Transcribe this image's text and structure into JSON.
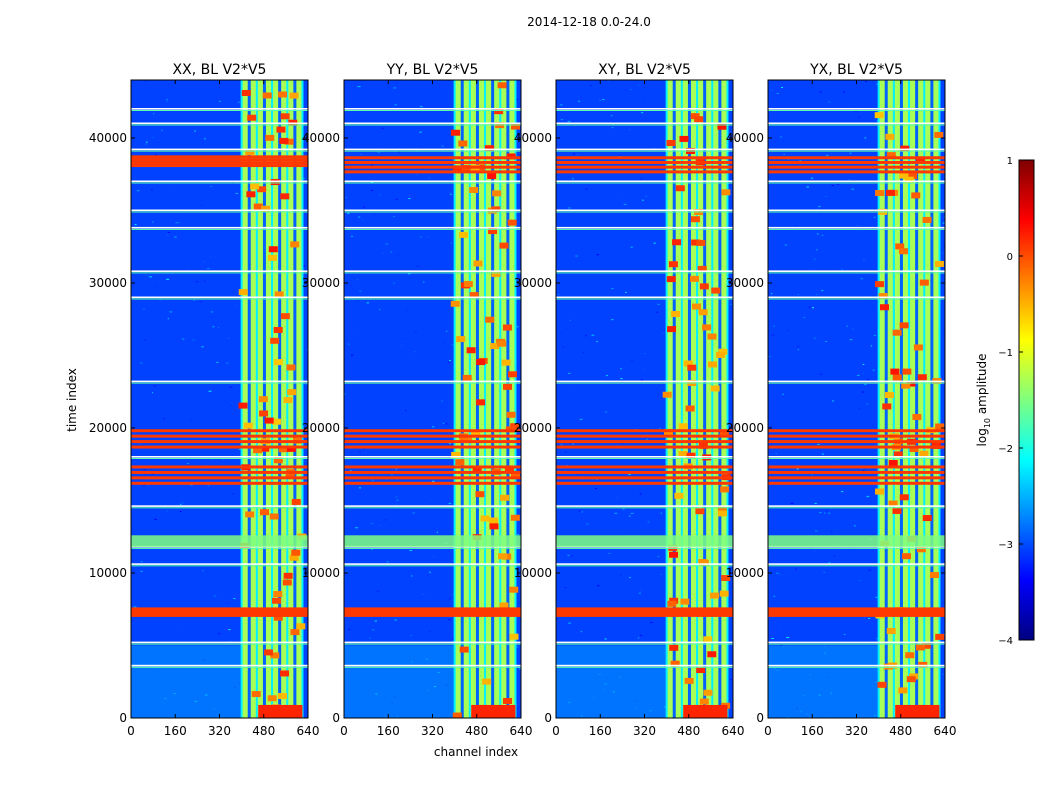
{
  "figure": {
    "suptitle": "2014-12-18 0.0-24.0",
    "ylabel": "time index",
    "xlabel": "channel index"
  },
  "colorbar": {
    "label": "log$_{10}$ amplitude",
    "label_parts": [
      "log",
      "10",
      " amplitude"
    ],
    "ticks": [
      1,
      0,
      -1,
      -2,
      -3,
      -4
    ],
    "tick_labels": [
      "1",
      "0",
      "−1",
      "−2",
      "−3",
      "−4"
    ],
    "range": [
      -4,
      1
    ],
    "colormap": "jet",
    "colormap_stops": [
      "#00007f",
      "#0000ff",
      "#007fff",
      "#00ffff",
      "#7fff7f",
      "#ffff00",
      "#ff7f00",
      "#ff0000",
      "#7f0000"
    ]
  },
  "chart_data": [
    {
      "type": "heatmap",
      "title": "XX, BL V2*V5",
      "xlabel": "channel index",
      "ylabel": "time index",
      "xlim": [
        0,
        640
      ],
      "ylim": [
        0,
        44000
      ],
      "xticks": [
        0,
        160,
        320,
        480,
        640
      ],
      "yticks": [
        0,
        10000,
        20000,
        30000,
        40000
      ],
      "ytick_labels": [
        "0",
        "10000",
        "20000",
        "30000",
        "40000"
      ],
      "band_channels": [
        [
          400,
          620
        ]
      ],
      "strong_time_bands": [
        [
          7000,
          7600
        ],
        [
          16000,
          17500
        ],
        [
          18500,
          20000
        ],
        [
          38000,
          38800
        ]
      ],
      "gap_rows": [
        3600,
        5200,
        10600,
        11800,
        14600,
        18000,
        23200,
        29000,
        30800,
        33800,
        35000,
        37000,
        39200,
        41000,
        42000
      ]
    },
    {
      "type": "heatmap",
      "title": "YY, BL V2*V5",
      "xlabel": "channel index",
      "ylabel": "time index",
      "xlim": [
        0,
        640
      ],
      "ylim": [
        0,
        44000
      ],
      "xticks": [
        0,
        160,
        320,
        480,
        640
      ],
      "yticks": [
        0,
        10000,
        20000,
        30000,
        40000
      ],
      "ytick_labels": [
        "0",
        "10000",
        "20000",
        "30000",
        "40000"
      ],
      "band_channels": [
        [
          400,
          620
        ]
      ],
      "strong_time_bands": [
        [
          7000,
          7600
        ],
        [
          16000,
          17500
        ],
        [
          18500,
          20000
        ],
        [
          37500,
          38800
        ]
      ],
      "gap_rows": [
        3600,
        5200,
        10600,
        11800,
        14600,
        18000,
        23200,
        29000,
        30800,
        33800,
        35000,
        37000,
        39200,
        41000,
        42000
      ]
    },
    {
      "type": "heatmap",
      "title": "XY, BL V2*V5",
      "xlabel": "channel index",
      "ylabel": "time index",
      "xlim": [
        0,
        640
      ],
      "ylim": [
        0,
        44000
      ],
      "xticks": [
        0,
        160,
        320,
        480,
        640
      ],
      "yticks": [
        0,
        10000,
        20000,
        30000,
        40000
      ],
      "ytick_labels": [
        "0",
        "10000",
        "20000",
        "30000",
        "40000"
      ],
      "band_channels": [
        [
          400,
          620
        ]
      ],
      "strong_time_bands": [
        [
          7000,
          7600
        ],
        [
          16000,
          17500
        ],
        [
          18500,
          20000
        ],
        [
          37500,
          38800
        ]
      ],
      "gap_rows": [
        3600,
        5200,
        10600,
        11800,
        14600,
        18000,
        23200,
        29000,
        30800,
        33800,
        35000,
        37000,
        39200,
        41000,
        42000
      ]
    },
    {
      "type": "heatmap",
      "title": "YX, BL V2*V5",
      "xlabel": "channel index",
      "ylabel": "time index",
      "xlim": [
        0,
        640
      ],
      "ylim": [
        0,
        44000
      ],
      "xticks": [
        0,
        160,
        320,
        480,
        640
      ],
      "yticks": [
        0,
        10000,
        20000,
        30000,
        40000
      ],
      "ytick_labels": [
        "0",
        "10000",
        "20000",
        "30000",
        "40000"
      ],
      "band_channels": [
        [
          400,
          620
        ]
      ],
      "strong_time_bands": [
        [
          7000,
          7600
        ],
        [
          16000,
          17500
        ],
        [
          18500,
          20000
        ],
        [
          37500,
          38800
        ]
      ],
      "gap_rows": [
        3600,
        5200,
        10600,
        11800,
        14600,
        18000,
        23200,
        29000,
        30800,
        33800,
        35000,
        37000,
        39200,
        41000,
        42000
      ]
    }
  ]
}
